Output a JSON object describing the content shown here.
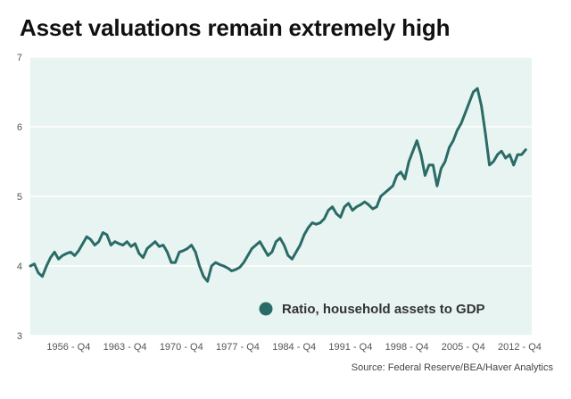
{
  "colors": {
    "series": "#2a6b67",
    "plot_bg": "#e8f4f1",
    "grid": "#ffffff"
  },
  "chart_data": {
    "type": "line",
    "title": "Asset valuations remain extremely high",
    "xlabel": "",
    "ylabel": "",
    "ylim": [
      3,
      7
    ],
    "yticks": [
      3,
      4,
      5,
      6,
      7
    ],
    "xlim": [
      1952.0,
      2014.25
    ],
    "xticks": [
      {
        "label": "1956 - Q4",
        "x": 1956.75
      },
      {
        "label": "1963 - Q4",
        "x": 1963.75
      },
      {
        "label": "1970 - Q4",
        "x": 1970.75
      },
      {
        "label": "1977 - Q4",
        "x": 1977.75
      },
      {
        "label": "1984 - Q4",
        "x": 1984.75
      },
      {
        "label": "1991 - Q4",
        "x": 1991.75
      },
      {
        "label": "1998 - Q4",
        "x": 1998.75
      },
      {
        "label": "2005 - Q4",
        "x": 2005.75
      },
      {
        "label": "2012 - Q4",
        "x": 2012.75
      }
    ],
    "legend": {
      "label": "Ratio, household assets to GDP",
      "position": "bottom-right"
    },
    "source": "Source: Federal Reserve/BEA/Haver Analytics",
    "series": [
      {
        "name": "Ratio, household assets to GDP",
        "x": [
          1952.0,
          1952.5,
          1953.0,
          1953.5,
          1954.0,
          1954.5,
          1955.0,
          1955.5,
          1956.0,
          1956.5,
          1957.0,
          1957.5,
          1958.0,
          1958.5,
          1959.0,
          1959.5,
          1960.0,
          1960.5,
          1961.0,
          1961.5,
          1962.0,
          1962.5,
          1963.0,
          1963.5,
          1964.0,
          1964.5,
          1965.0,
          1965.5,
          1966.0,
          1966.5,
          1967.0,
          1967.5,
          1968.0,
          1968.5,
          1969.0,
          1969.5,
          1970.0,
          1970.5,
          1971.0,
          1971.5,
          1972.0,
          1972.5,
          1973.0,
          1973.5,
          1974.0,
          1974.5,
          1975.0,
          1975.5,
          1976.0,
          1976.5,
          1977.0,
          1977.5,
          1978.0,
          1978.5,
          1979.0,
          1979.5,
          1980.0,
          1980.5,
          1981.0,
          1981.5,
          1982.0,
          1982.5,
          1983.0,
          1983.5,
          1984.0,
          1984.5,
          1985.0,
          1985.5,
          1986.0,
          1986.5,
          1987.0,
          1987.5,
          1988.0,
          1988.5,
          1989.0,
          1989.5,
          1990.0,
          1990.5,
          1991.0,
          1991.5,
          1992.0,
          1992.5,
          1993.0,
          1993.5,
          1994.0,
          1994.5,
          1995.0,
          1995.5,
          1996.0,
          1996.5,
          1997.0,
          1997.5,
          1998.0,
          1998.5,
          1999.0,
          1999.5,
          2000.0,
          2000.5,
          2001.0,
          2001.5,
          2002.0,
          2002.5,
          2003.0,
          2003.5,
          2004.0,
          2004.5,
          2005.0,
          2005.5,
          2006.0,
          2006.5,
          2007.0,
          2007.5,
          2008.0,
          2008.5,
          2009.0,
          2009.5,
          2010.0,
          2010.5,
          2011.0,
          2011.5,
          2012.0,
          2012.5,
          2013.0,
          2013.5
        ],
        "values": [
          4.0,
          4.03,
          3.9,
          3.85,
          4.0,
          4.12,
          4.2,
          4.1,
          4.15,
          4.18,
          4.2,
          4.15,
          4.22,
          4.32,
          4.42,
          4.38,
          4.3,
          4.35,
          4.48,
          4.45,
          4.3,
          4.35,
          4.32,
          4.3,
          4.35,
          4.28,
          4.32,
          4.18,
          4.12,
          4.25,
          4.3,
          4.35,
          4.28,
          4.3,
          4.2,
          4.05,
          4.05,
          4.2,
          4.22,
          4.25,
          4.3,
          4.2,
          4.0,
          3.85,
          3.78,
          4.0,
          4.05,
          4.02,
          4.0,
          3.97,
          3.93,
          3.95,
          3.98,
          4.05,
          4.15,
          4.25,
          4.3,
          4.35,
          4.25,
          4.15,
          4.2,
          4.35,
          4.4,
          4.3,
          4.15,
          4.1,
          4.2,
          4.3,
          4.45,
          4.55,
          4.62,
          4.6,
          4.62,
          4.68,
          4.8,
          4.85,
          4.75,
          4.7,
          4.85,
          4.9,
          4.8,
          4.85,
          4.88,
          4.92,
          4.88,
          4.82,
          4.85,
          5.0,
          5.05,
          5.1,
          5.15,
          5.3,
          5.35,
          5.25,
          5.5,
          5.65,
          5.8,
          5.6,
          5.3,
          5.45,
          5.45,
          5.15,
          5.4,
          5.5,
          5.7,
          5.8,
          5.95,
          6.05,
          6.2,
          6.35,
          6.5,
          6.55,
          6.3,
          5.9,
          5.45,
          5.5,
          5.6,
          5.65,
          5.55,
          5.6,
          5.45,
          5.6,
          5.6,
          5.67
        ]
      }
    ]
  }
}
